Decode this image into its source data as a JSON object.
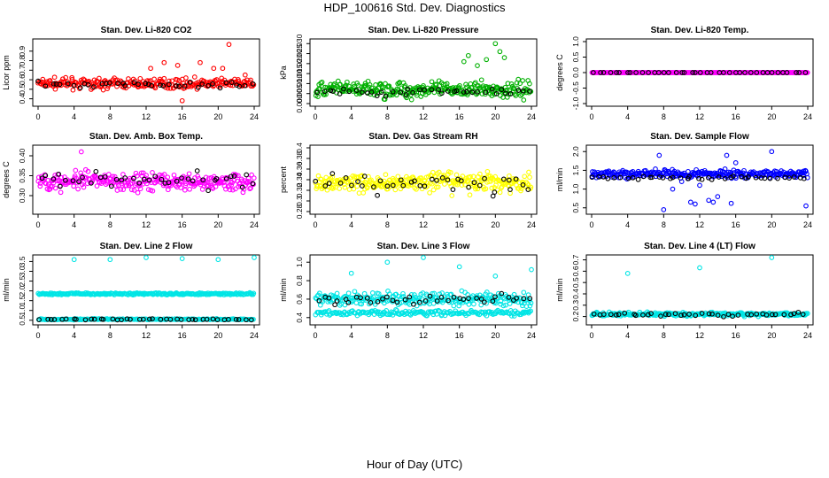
{
  "figure": {
    "title": "HDP_100616  Std. Dev. Diagnostics",
    "xlabel": "Hour of Day (UTC)"
  },
  "chart_data": [
    {
      "type": "scatter",
      "title": "Stan. Dev. Li-820 CO2",
      "ylabel": "Licor ppm",
      "xlim": [
        0,
        24
      ],
      "ylim": [
        0.35,
        1.0
      ],
      "yticks": [
        0.4,
        0.5,
        0.6,
        0.7,
        0.8,
        0.9
      ],
      "xticks": [
        0,
        4,
        8,
        12,
        16,
        20,
        24
      ],
      "colors": {
        "main": "#ff0000",
        "ref": "#000000"
      },
      "series": [
        {
          "name": "main",
          "style": "band",
          "center": 0.56,
          "spread": 0.05,
          "count": 260
        },
        {
          "name": "ref",
          "style": "band",
          "center": 0.55,
          "spread": 0.03,
          "count": 40
        },
        {
          "name": "outliers",
          "x": [
            12.5,
            14,
            15.5,
            16,
            18,
            19.5,
            20.5,
            21.2,
            23
          ],
          "y": [
            0.72,
            0.78,
            0.75,
            0.38,
            0.78,
            0.72,
            0.72,
            0.97,
            0.65
          ]
        }
      ]
    },
    {
      "type": "scatter",
      "title": "Stan. Dev. Li-820 Pressure",
      "ylabel": "kPa",
      "xlim": [
        0,
        24
      ],
      "ylim": [
        0,
        0.031
      ],
      "yticks": [
        0.0,
        0.005,
        0.01,
        0.015,
        0.02,
        0.025,
        0.03
      ],
      "xticks": [
        0,
        4,
        8,
        12,
        16,
        20,
        24
      ],
      "colors": {
        "main": "#00b000",
        "ref": "#000000"
      },
      "series": [
        {
          "name": "main",
          "style": "band",
          "center": 0.007,
          "spread": 0.004,
          "count": 300
        },
        {
          "name": "ref",
          "style": "band",
          "center": 0.006,
          "spread": 0.002,
          "count": 40
        },
        {
          "name": "outliers",
          "x": [
            16.5,
            17,
            18,
            19,
            20,
            20.5,
            21
          ],
          "y": [
            0.021,
            0.024,
            0.019,
            0.022,
            0.03,
            0.026,
            0.023
          ]
        }
      ]
    },
    {
      "type": "scatter",
      "title": "Stan. Dev. Li-820 Temp.",
      "ylabel": "degrees C",
      "xlim": [
        0,
        24
      ],
      "ylim": [
        -1,
        1
      ],
      "yticks": [
        -1.0,
        -0.5,
        0.0,
        0.5,
        1.0
      ],
      "xticks": [
        0,
        4,
        8,
        12,
        16,
        20,
        24
      ],
      "colors": {
        "main": "#ff00ff",
        "ref": "#000000"
      },
      "series": [
        {
          "name": "main",
          "style": "band",
          "center": 0.0,
          "spread": 0.0,
          "count": 300
        },
        {
          "name": "ref",
          "style": "band",
          "center": 0.0,
          "spread": 0.0,
          "count": 40
        }
      ]
    },
    {
      "type": "scatter",
      "title": "Stan. Dev. Amb. Box Temp.",
      "ylabel": "degrees C",
      "xlim": [
        0,
        24
      ],
      "ylim": [
        0.26,
        0.42
      ],
      "yticks": [
        0.3,
        0.35,
        0.4
      ],
      "xticks": [
        0,
        4,
        8,
        12,
        16,
        20,
        24
      ],
      "colors": {
        "main": "#ff00ff",
        "ref": "#000000"
      },
      "series": [
        {
          "name": "main",
          "style": "band",
          "center": 0.335,
          "spread": 0.022,
          "count": 300
        },
        {
          "name": "ref",
          "style": "band",
          "center": 0.34,
          "spread": 0.02,
          "count": 40
        },
        {
          "name": "outliers",
          "x": [
            4.8
          ],
          "y": [
            0.41
          ]
        }
      ]
    },
    {
      "type": "scatter",
      "title": "Stan. Dev. Gas Stream RH",
      "ylabel": "percent",
      "xlim": [
        0,
        24
      ],
      "ylim": [
        0.28,
        0.4
      ],
      "yticks": [
        0.28,
        0.3,
        0.32,
        0.34,
        0.36,
        0.38,
        0.4
      ],
      "xticks": [
        0,
        4,
        8,
        12,
        16,
        20,
        24
      ],
      "colors": {
        "main": "#ffff00",
        "ref": "#000000"
      },
      "series": [
        {
          "name": "main",
          "style": "band",
          "center": 0.335,
          "spread": 0.018,
          "count": 300
        },
        {
          "name": "ref",
          "style": "band",
          "center": 0.335,
          "spread": 0.02,
          "count": 40
        }
      ]
    },
    {
      "type": "scatter",
      "title": "Stan. Dev. Sample Flow",
      "ylabel": "ml/min",
      "xlim": [
        0,
        24
      ],
      "ylim": [
        0.4,
        2.1
      ],
      "yticks": [
        0.5,
        1.0,
        1.5,
        2.0
      ],
      "xticks": [
        0,
        4,
        8,
        12,
        16,
        20,
        24
      ],
      "colors": {
        "main": "#0000ff",
        "ref": "#000000"
      },
      "series": [
        {
          "name": "main",
          "style": "band",
          "center": 1.4,
          "spread": 0.1,
          "count": 300
        },
        {
          "name": "ref",
          "style": "band",
          "center": 1.3,
          "spread": 0.05,
          "count": 40
        },
        {
          "name": "outliers",
          "x": [
            7.5,
            8,
            9,
            10,
            11,
            11.5,
            12,
            13,
            13.5,
            14,
            15,
            15.5,
            16,
            20,
            23.8
          ],
          "y": [
            1.9,
            0.45,
            1.0,
            1.2,
            0.65,
            0.6,
            1.1,
            0.7,
            0.65,
            0.8,
            1.9,
            0.62,
            1.7,
            2.0,
            0.55
          ]
        }
      ]
    },
    {
      "type": "scatter",
      "title": "Stan. Dev. Line 2 Flow",
      "ylabel": "ml/min",
      "xlim": [
        0,
        24
      ],
      "ylim": [
        0.4,
        3.7
      ],
      "yticks": [
        0.5,
        1.0,
        1.5,
        2.0,
        2.5,
        3.0,
        3.5
      ],
      "xticks": [
        0,
        4,
        8,
        12,
        16,
        20,
        24
      ],
      "colors": {
        "main": "#00e5e5",
        "ref": "#000000"
      },
      "series": [
        {
          "name": "main",
          "style": "band",
          "center": 1.85,
          "spread": 0.05,
          "count": 260
        },
        {
          "name": "main2",
          "style": "band",
          "center": 0.55,
          "spread": 0.03,
          "count": 200
        },
        {
          "name": "ref",
          "style": "band",
          "center": 0.55,
          "spread": 0.03,
          "count": 40
        },
        {
          "name": "outliers",
          "x": [
            4,
            8,
            12,
            16,
            20,
            24
          ],
          "y": [
            3.6,
            3.6,
            3.7,
            3.65,
            3.6,
            3.7
          ]
        }
      ]
    },
    {
      "type": "scatter",
      "title": "Stan. Dev. Line 3 Flow",
      "ylabel": "ml/min",
      "xlim": [
        0,
        24
      ],
      "ylim": [
        0.35,
        1.05
      ],
      "yticks": [
        0.4,
        0.6,
        0.8,
        1.0
      ],
      "xticks": [
        0,
        4,
        8,
        12,
        16,
        20,
        24
      ],
      "colors": {
        "main": "#00e5e5",
        "ref": "#000000"
      },
      "series": [
        {
          "name": "main",
          "style": "band",
          "center": 0.6,
          "spread": 0.07,
          "count": 260
        },
        {
          "name": "main2",
          "style": "band",
          "center": 0.45,
          "spread": 0.03,
          "count": 200
        },
        {
          "name": "ref",
          "style": "band",
          "center": 0.6,
          "spread": 0.05,
          "count": 40
        },
        {
          "name": "outliers",
          "x": [
            4,
            8,
            12,
            16,
            20,
            24
          ],
          "y": [
            0.88,
            1.0,
            1.05,
            0.95,
            0.85,
            0.92
          ]
        }
      ]
    },
    {
      "type": "scatter",
      "title": "Stan. Dev. Line 4 (LT) Flow",
      "ylabel": "ml/min",
      "xlim": [
        0,
        24
      ],
      "ylim": [
        0.15,
        0.72
      ],
      "yticks": [
        0.2,
        0.3,
        0.4,
        0.5,
        0.6,
        0.7
      ],
      "xticks": [
        0,
        4,
        8,
        12,
        16,
        20,
        24
      ],
      "colors": {
        "main": "#00e5e5",
        "ref": "#000000"
      },
      "series": [
        {
          "name": "main",
          "style": "band",
          "center": 0.22,
          "spread": 0.015,
          "count": 300
        },
        {
          "name": "ref",
          "style": "band",
          "center": 0.22,
          "spread": 0.015,
          "count": 40
        },
        {
          "name": "outliers",
          "x": [
            4,
            12,
            20
          ],
          "y": [
            0.58,
            0.63,
            0.72
          ]
        }
      ]
    }
  ]
}
